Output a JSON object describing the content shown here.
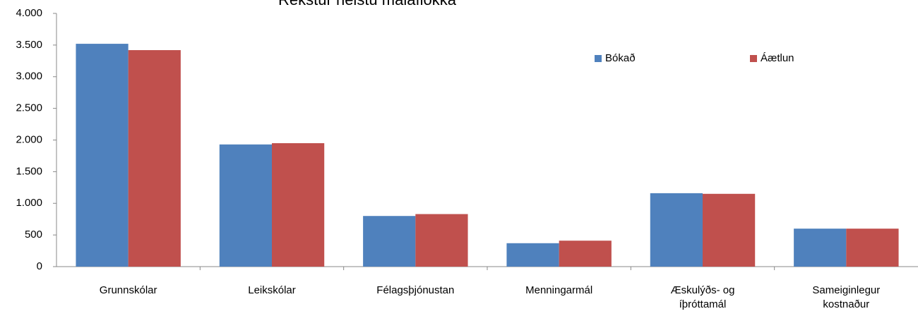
{
  "chart_data": {
    "type": "bar",
    "title": "Rekstur helstu málaflokka",
    "categories": [
      "Grunnskólar",
      "Leikskólar",
      "Félagsþjónustan",
      "Menningarmál",
      "Æskulýðs- og\níþróttamál",
      "Sameiginlegur\nkostnaður"
    ],
    "series": [
      {
        "name": "Bókað",
        "color": "#4f81bd",
        "values": [
          3520,
          1930,
          800,
          370,
          1160,
          600
        ]
      },
      {
        "name": "Áætlun",
        "color": "#c0504d",
        "values": [
          3420,
          1950,
          830,
          410,
          1150,
          600
        ]
      }
    ],
    "ylim": [
      0,
      4000
    ],
    "yticks": [
      0,
      {
        "value": 500,
        "label": "500"
      },
      {
        "value": 1000,
        "label": "1.000"
      },
      {
        "value": 1500,
        "label": "1.500"
      },
      {
        "value": 2000,
        "label": "2.000"
      },
      {
        "value": 2500,
        "label": "2.500"
      },
      {
        "value": 3000,
        "label": "3.000"
      },
      {
        "value": 3500,
        "label": "3.500"
      },
      {
        "value": 4000,
        "label": "4.000"
      }
    ],
    "grid": false,
    "legend": "top-right"
  }
}
